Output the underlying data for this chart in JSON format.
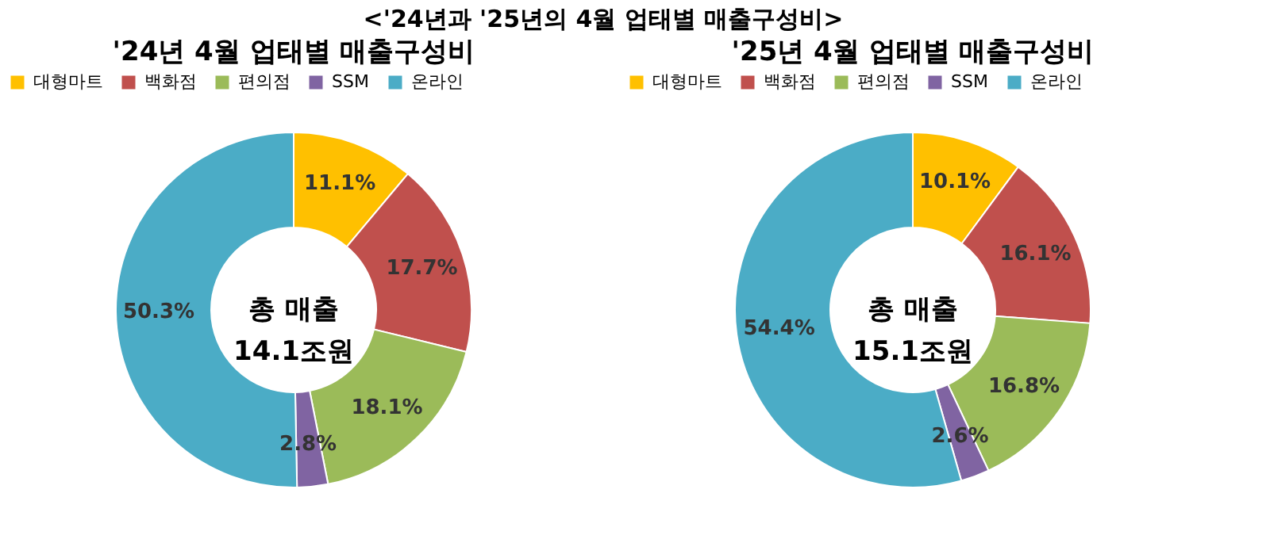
{
  "chart_data": [
    {
      "type": "donut",
      "title": "<'24년과 '25년의 4월 업태별 매출구성비>",
      "subtitle": "'24년 4월 업태별 매출구성비",
      "categories": [
        "대형마트",
        "백화점",
        "편의점",
        "SSM",
        "온라인"
      ],
      "values": [
        11.1,
        17.7,
        18.1,
        2.8,
        50.3
      ],
      "colors": [
        "#ffc000",
        "#c0504d",
        "#9bbb59",
        "#8064a2",
        "#4bacc6"
      ],
      "value_labels": [
        "11.1%",
        "17.7%",
        "18.1%",
        "2.8%",
        "50.3%"
      ],
      "annotations": [
        "총 매출",
        "14.1조원"
      ],
      "legend": "top"
    },
    {
      "type": "donut",
      "subtitle": "'25년 4월 업태별 매출구성비",
      "categories": [
        "대형마트",
        "백화점",
        "편의점",
        "SSM",
        "온라인"
      ],
      "values": [
        10.1,
        16.1,
        16.8,
        2.6,
        54.4
      ],
      "colors": [
        "#ffc000",
        "#c0504d",
        "#9bbb59",
        "#8064a2",
        "#4bacc6"
      ],
      "value_labels": [
        "10.1%",
        "16.1%",
        "16.8%",
        "2.6%",
        "54.4%"
      ],
      "annotations": [
        "총 매출",
        "15.1조원"
      ],
      "legend": "top"
    }
  ]
}
